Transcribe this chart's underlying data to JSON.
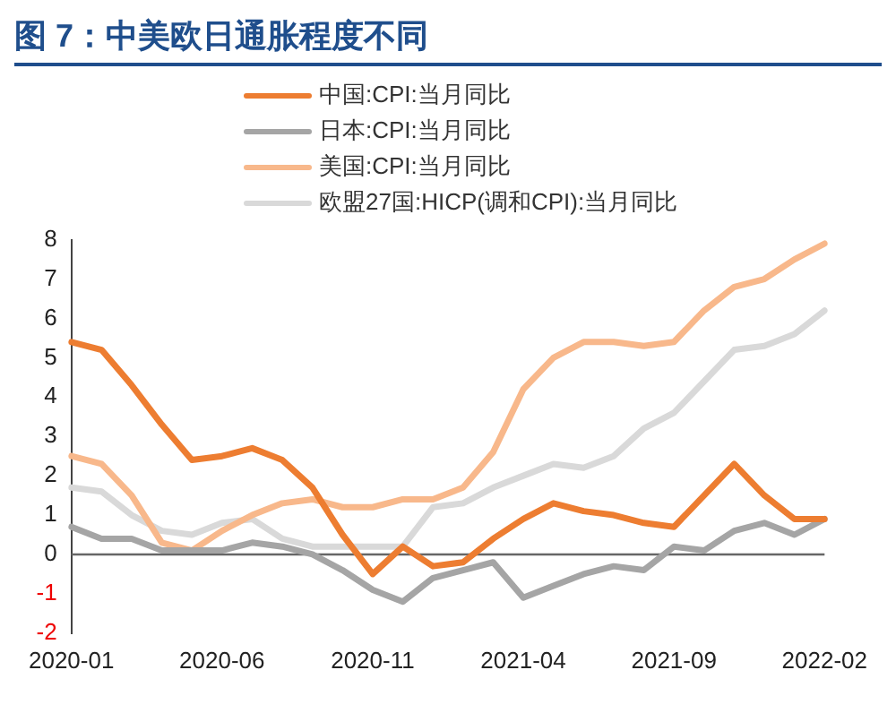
{
  "chart_data": {
    "type": "line",
    "title": "图 7：中美欧日通胀程度不同",
    "categories": [
      "2020-01",
      null,
      null,
      null,
      null,
      "2020-06",
      null,
      null,
      null,
      null,
      "2020-11",
      null,
      null,
      null,
      null,
      "2021-04",
      null,
      null,
      null,
      null,
      "2021-09",
      null,
      null,
      null,
      null,
      "2022-02"
    ],
    "series": [
      {
        "name": "中国:CPI:当月同比",
        "color": "#ed7d31",
        "values": [
          5.4,
          5.2,
          4.3,
          3.3,
          2.4,
          2.5,
          2.7,
          2.4,
          1.7,
          0.5,
          -0.5,
          0.2,
          -0.3,
          -0.2,
          0.4,
          0.9,
          1.3,
          1.1,
          1.0,
          0.8,
          0.7,
          1.5,
          2.3,
          1.5,
          0.9,
          0.9
        ]
      },
      {
        "name": "日本:CPI:当月同比",
        "color": "#a5a5a5",
        "values": [
          0.7,
          0.4,
          0.4,
          0.1,
          0.1,
          0.1,
          0.3,
          0.2,
          0.0,
          -0.4,
          -0.9,
          -1.2,
          -0.6,
          -0.4,
          -0.2,
          -1.1,
          -0.8,
          -0.5,
          -0.3,
          -0.4,
          0.2,
          0.1,
          0.6,
          0.8,
          0.5,
          0.9
        ]
      },
      {
        "name": "美国:CPI:当月同比",
        "color": "#f8b88b",
        "values": [
          2.5,
          2.3,
          1.5,
          0.3,
          0.1,
          0.6,
          1.0,
          1.3,
          1.4,
          1.2,
          1.2,
          1.4,
          1.4,
          1.7,
          2.6,
          4.2,
          5.0,
          5.4,
          5.4,
          5.3,
          5.4,
          6.2,
          6.8,
          7.0,
          7.5,
          7.9
        ]
      },
      {
        "name": "欧盟27国:HICP(调和CPI):当月同比",
        "color": "#d9d9d9",
        "values": [
          1.7,
          1.6,
          1.0,
          0.6,
          0.5,
          0.8,
          0.9,
          0.4,
          0.2,
          0.2,
          0.2,
          0.2,
          1.2,
          1.3,
          1.7,
          2.0,
          2.3,
          2.2,
          2.5,
          3.2,
          3.6,
          4.4,
          5.2,
          5.3,
          5.6,
          6.2
        ]
      }
    ],
    "ylim": [
      -2,
      8
    ],
    "yticks": [
      -2,
      -1,
      0,
      1,
      2,
      3,
      4,
      5,
      6,
      7,
      8
    ],
    "grid": false,
    "ref_lines": [
      {
        "axis": "y",
        "value": 0,
        "color": "#666666"
      }
    ],
    "legend": "top",
    "marker": "none",
    "line_style": "solid"
  }
}
